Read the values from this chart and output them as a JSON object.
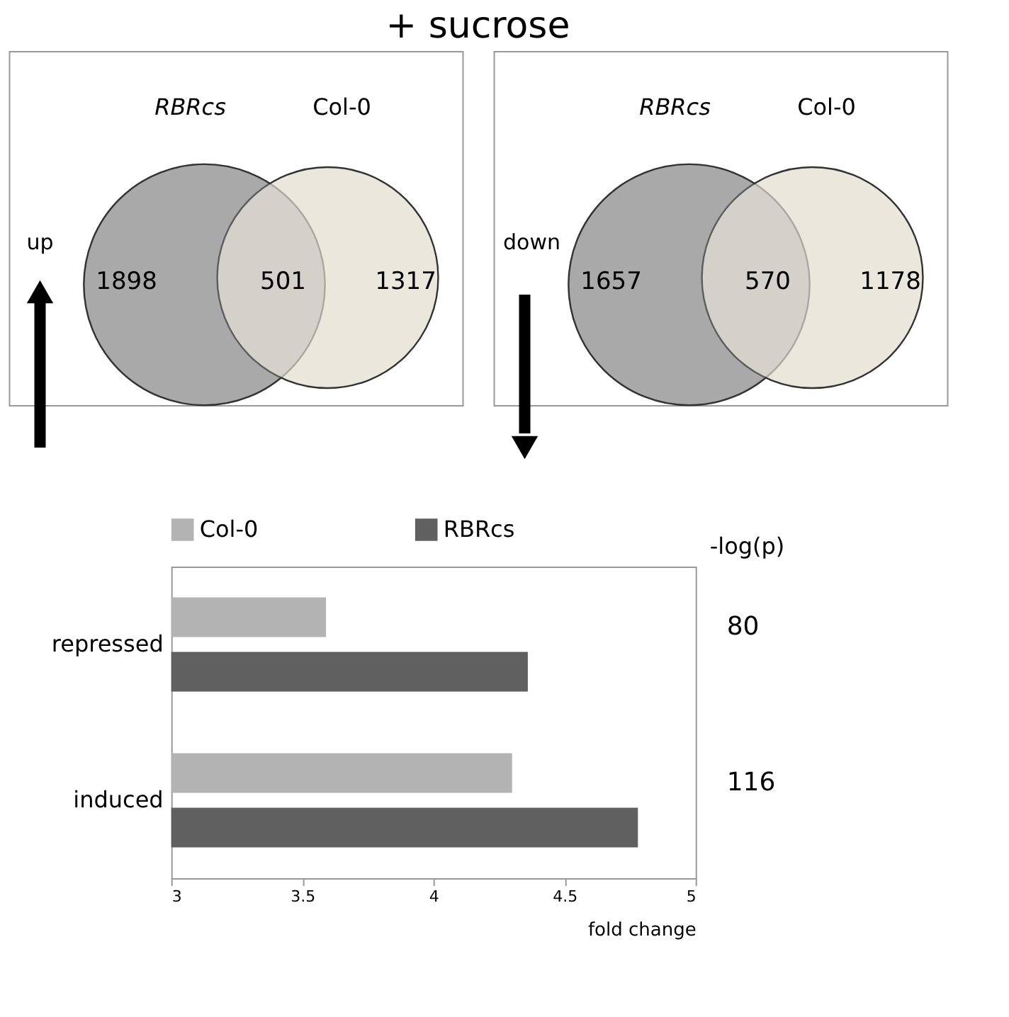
{
  "chart_data": [
    {
      "type": "other",
      "title": "+ sucrose",
      "categories": [
        "RBRcs",
        "Col-0"
      ],
      "colors": [
        "#a9a9a9",
        "#eae8dc"
      ],
      "annotations": [
        "1898",
        "501",
        "1317",
        "up"
      ]
    },
    {
      "type": "other",
      "categories": [
        "RBRcs",
        "Col-0"
      ],
      "colors": [
        "#a9a9a9",
        "#eae8dc"
      ],
      "annotations": [
        "1657",
        "570",
        "1178",
        "down"
      ]
    },
    {
      "type": "bar",
      "orientation": "horizontal",
      "categories": [
        "repressed",
        "induced"
      ],
      "series": [
        {
          "name": "Col-0",
          "color": "#b3b3b3",
          "values": [
            3.59,
            4.3
          ]
        },
        {
          "name": "RBRcs",
          "color": "#606060",
          "values": [
            4.36,
            4.78
          ]
        }
      ],
      "xlim": [
        3,
        5
      ],
      "xticks": [
        3,
        3.5,
        4,
        4.5,
        5
      ],
      "xlabel": "fold change",
      "y2label": "-log(p)",
      "annotations": [
        "80",
        "116"
      ],
      "legend": "top",
      "grid": false
    }
  ]
}
